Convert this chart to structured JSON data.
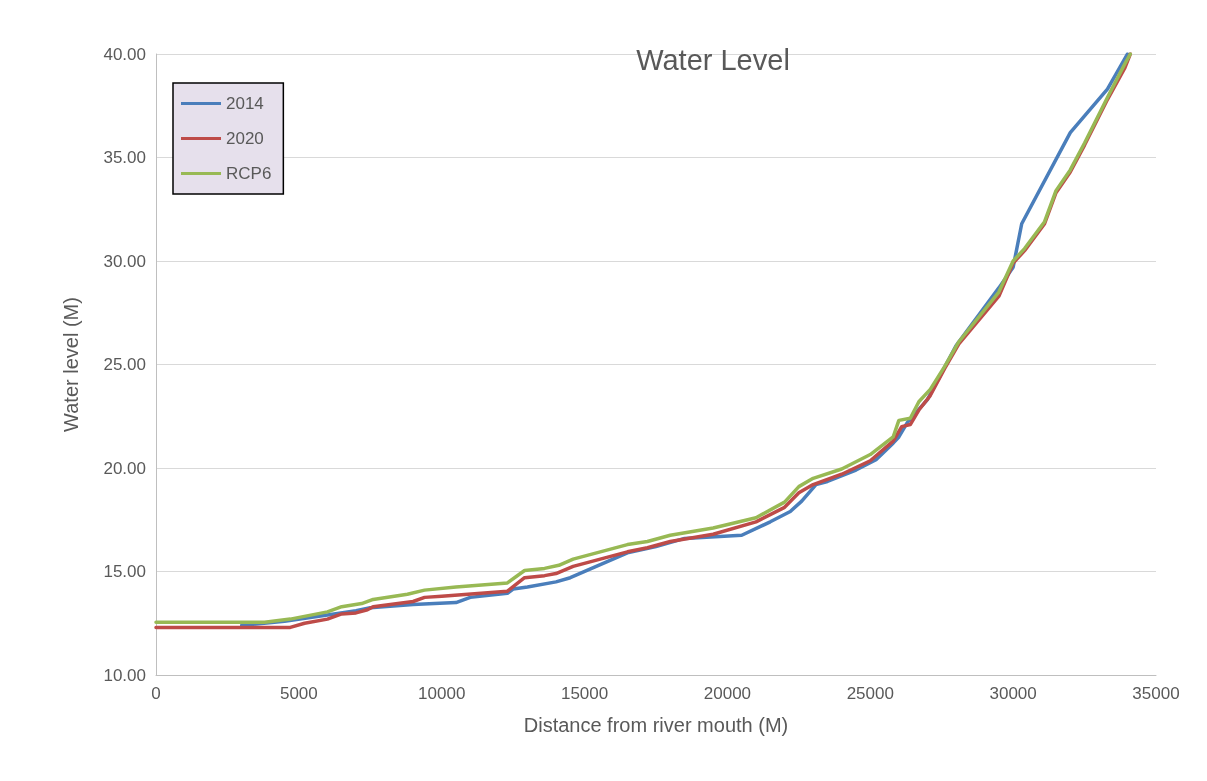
{
  "chart_data": {
    "type": "line",
    "title": "Water Level",
    "xlabel": "Distance from river mouth (M)",
    "ylabel": "Water level (M)",
    "xlim": [
      0,
      35000
    ],
    "xticks": [
      0,
      5000,
      10000,
      15000,
      20000,
      25000,
      30000,
      35000
    ],
    "ylim": [
      10,
      40
    ],
    "yticks": [
      {
        "value": 10,
        "label": "10.00"
      },
      {
        "value": 15,
        "label": "15.00"
      },
      {
        "value": 20,
        "label": "20.00"
      },
      {
        "value": 25,
        "label": "25.00"
      },
      {
        "value": 30,
        "label": "30.00"
      },
      {
        "value": 35,
        "label": "35.00"
      },
      {
        "value": 40,
        "label": "40.00"
      }
    ],
    "grid": "y",
    "legend": "top left",
    "marker": "none",
    "line_style": "solid",
    "series": [
      {
        "name": "2014",
        "color": "#4a7ebb",
        "x": [
          3000,
          4500,
          6000,
          7000,
          7500,
          9000,
          10500,
          11000,
          12300,
          12500,
          13000,
          14000,
          14500,
          16500,
          17500,
          18500,
          20500,
          21500,
          22200,
          22600,
          23100,
          23500,
          24500,
          25200,
          25800,
          26000,
          26300,
          27000,
          28000,
          29500,
          30000,
          30300,
          32000,
          33300,
          34000
        ],
        "values": [
          12.4,
          12.6,
          12.9,
          13.1,
          13.25,
          13.4,
          13.5,
          13.75,
          13.95,
          14.15,
          14.25,
          14.5,
          14.7,
          15.9,
          16.2,
          16.6,
          16.75,
          17.4,
          17.9,
          18.4,
          19.2,
          19.35,
          19.9,
          20.4,
          21.2,
          21.5,
          22.2,
          23.3,
          25.9,
          28.7,
          29.7,
          31.8,
          36.2,
          38.3,
          40
        ]
      },
      {
        "name": "2020",
        "color": "#be4b48",
        "x": [
          0,
          4700,
          5200,
          6000,
          6500,
          7000,
          7400,
          7600,
          9000,
          9400,
          10000,
          12300,
          12900,
          13600,
          14000,
          14600,
          16500,
          17200,
          18000,
          19500,
          21000,
          22000,
          22500,
          23000,
          24000,
          25000,
          25800,
          26100,
          26400,
          26700,
          27100,
          27600,
          28100,
          29500,
          30000,
          30400,
          31100,
          31500,
          32000,
          32500,
          33300,
          33900,
          34100
        ],
        "values": [
          12.3,
          12.3,
          12.5,
          12.7,
          12.95,
          13.0,
          13.15,
          13.3,
          13.55,
          13.75,
          13.8,
          14.05,
          14.7,
          14.8,
          14.9,
          15.25,
          15.95,
          16.15,
          16.45,
          16.8,
          17.4,
          18.1,
          18.8,
          19.2,
          19.7,
          20.35,
          21.3,
          22.0,
          22.1,
          22.8,
          23.5,
          24.8,
          26.0,
          28.3,
          29.9,
          30.5,
          31.8,
          33.3,
          34.3,
          35.6,
          37.8,
          39.3,
          40
        ]
      },
      {
        "name": "RCP6",
        "color": "#98b954",
        "x": [
          0,
          3800,
          4700,
          6000,
          6500,
          7200,
          7600,
          8800,
          9400,
          10500,
          12300,
          12900,
          13600,
          14100,
          14600,
          16500,
          17200,
          18000,
          19500,
          21000,
          22000,
          22500,
          23000,
          24000,
          25000,
          25800,
          26000,
          26400,
          26700,
          27100,
          27600,
          28100,
          29500,
          30000,
          30400,
          31100,
          31500,
          32000,
          32500,
          33300,
          33900,
          34100
        ],
        "values": [
          12.55,
          12.55,
          12.7,
          13.05,
          13.3,
          13.45,
          13.65,
          13.9,
          14.1,
          14.25,
          14.45,
          15.05,
          15.15,
          15.3,
          15.6,
          16.3,
          16.45,
          16.75,
          17.1,
          17.6,
          18.35,
          19.1,
          19.5,
          19.95,
          20.65,
          21.5,
          22.3,
          22.4,
          23.2,
          23.8,
          24.9,
          26.1,
          28.5,
          30.0,
          30.6,
          31.9,
          33.4,
          34.4,
          35.7,
          37.9,
          39.5,
          40
        ]
      }
    ]
  }
}
